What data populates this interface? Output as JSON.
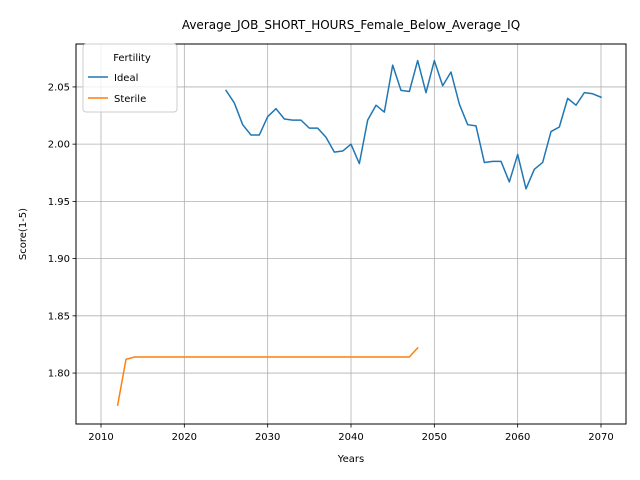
{
  "chart_data": {
    "type": "line",
    "title": "Average_JOB_SHORT_HOURS_Female_Below_Average_IQ",
    "xlabel": "Years",
    "ylabel": "Score(1-5)",
    "xlim": [
      2007,
      2073
    ],
    "ylim": [
      1.7555,
      2.0875
    ],
    "xticks": [
      2010,
      2020,
      2030,
      2040,
      2050,
      2060,
      2070
    ],
    "yticks": [
      1.8,
      1.85,
      1.9,
      1.95,
      2.0,
      2.05
    ],
    "ytick_labels": [
      "1.80",
      "1.85",
      "1.90",
      "1.95",
      "2.00",
      "2.05"
    ],
    "grid": true,
    "legend": {
      "title": "Fertility",
      "placement": "top-left"
    },
    "series": [
      {
        "name": "Ideal",
        "color": "#1f77b4",
        "x": [
          2025,
          2026,
          2027,
          2028,
          2029,
          2030,
          2031,
          2032,
          2033,
          2034,
          2035,
          2036,
          2037,
          2038,
          2039,
          2040,
          2041,
          2042,
          2043,
          2044,
          2045,
          2046,
          2047,
          2048,
          2049,
          2050,
          2051,
          2052,
          2053,
          2054,
          2055,
          2056,
          2057,
          2058,
          2059,
          2060,
          2061,
          2062,
          2063,
          2064,
          2065,
          2066,
          2067,
          2068,
          2069,
          2070
        ],
        "y": [
          2.047,
          2.036,
          2.017,
          2.008,
          2.008,
          2.024,
          2.031,
          2.022,
          2.021,
          2.021,
          2.014,
          2.014,
          2.006,
          1.993,
          1.994,
          2.0,
          1.983,
          2.021,
          2.034,
          2.028,
          2.069,
          2.047,
          2.046,
          2.073,
          2.045,
          2.073,
          2.051,
          2.063,
          2.035,
          2.017,
          2.016,
          1.984,
          1.985,
          1.985,
          1.967,
          1.991,
          1.961,
          1.978,
          1.984,
          2.011,
          2.015,
          2.04,
          2.034,
          2.045,
          2.044,
          2.041
        ]
      },
      {
        "name": "Sterile",
        "color": "#ff7f0e",
        "x": [
          2012,
          2013,
          2014,
          2015,
          2016,
          2017,
          2018,
          2019,
          2020,
          2021,
          2022,
          2023,
          2024,
          2025,
          2026,
          2027,
          2028,
          2029,
          2030,
          2031,
          2032,
          2033,
          2034,
          2035,
          2036,
          2037,
          2038,
          2039,
          2040,
          2041,
          2042,
          2043,
          2044,
          2045,
          2046,
          2047,
          2048
        ],
        "y": [
          1.772,
          1.812,
          1.814,
          1.814,
          1.814,
          1.814,
          1.814,
          1.814,
          1.814,
          1.814,
          1.814,
          1.814,
          1.814,
          1.814,
          1.814,
          1.814,
          1.814,
          1.814,
          1.814,
          1.814,
          1.814,
          1.814,
          1.814,
          1.814,
          1.814,
          1.814,
          1.814,
          1.814,
          1.814,
          1.814,
          1.814,
          1.814,
          1.814,
          1.814,
          1.814,
          1.814,
          1.822
        ]
      }
    ]
  }
}
